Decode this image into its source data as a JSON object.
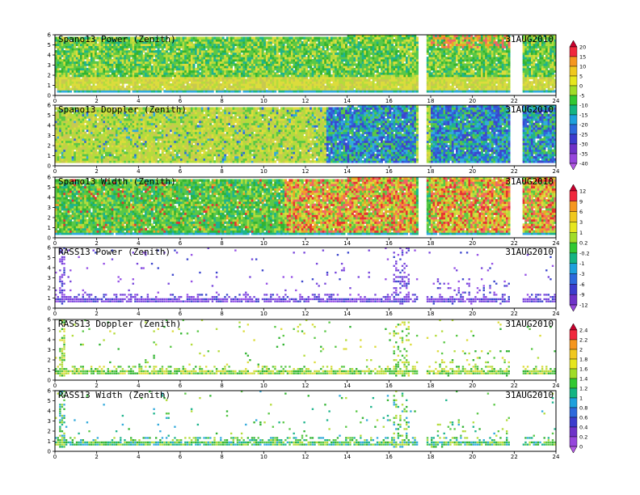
{
  "chart_data": [
    {
      "type": "heatmap",
      "title": "Spano13 Power (Zenith)",
      "date": "31AUG2010",
      "kind": "dense",
      "field": "power",
      "xlim": [
        0,
        24
      ],
      "ylim": [
        0,
        6
      ],
      "xticks": [
        0,
        2,
        4,
        6,
        8,
        10,
        12,
        14,
        16,
        18,
        20,
        22,
        24
      ],
      "yticks": [
        0,
        1,
        2,
        3,
        4,
        5,
        6
      ],
      "gaps": [
        [
          17.4,
          17.8
        ],
        [
          21.8,
          22.4
        ]
      ],
      "colorbar": "A"
    },
    {
      "type": "heatmap",
      "title": "Spano13 Doppler (Zenith)",
      "date": "31AUG2010",
      "kind": "dense",
      "field": "doppler",
      "xlim": [
        0,
        24
      ],
      "ylim": [
        0,
        6
      ],
      "xticks": [
        0,
        2,
        4,
        6,
        8,
        10,
        12,
        14,
        16,
        18,
        20,
        22,
        24
      ],
      "yticks": [
        0,
        1,
        2,
        3,
        4,
        5,
        6
      ],
      "gaps": [
        [
          17.4,
          17.8
        ],
        [
          21.8,
          22.4
        ]
      ],
      "colorbar": "A"
    },
    {
      "type": "heatmap",
      "title": "Spano13 Width (Zenith)",
      "date": "31AUG2010",
      "kind": "dense",
      "field": "width",
      "xlim": [
        0,
        24
      ],
      "ylim": [
        0,
        6
      ],
      "xticks": [
        0,
        2,
        4,
        6,
        8,
        10,
        12,
        14,
        16,
        18,
        20,
        22,
        24
      ],
      "yticks": [
        0,
        1,
        2,
        3,
        4,
        5,
        6
      ],
      "gaps": [
        [
          17.4,
          17.8
        ],
        [
          21.8,
          22.4
        ]
      ],
      "colorbar": "B"
    },
    {
      "type": "heatmap",
      "title": "RASS13 Power (Zenith)",
      "date": "31AUG2010",
      "kind": "sparse",
      "field": "rpower",
      "xlim": [
        0,
        24
      ],
      "ylim": [
        0,
        6
      ],
      "xticks": [
        0,
        2,
        4,
        6,
        8,
        10,
        12,
        14,
        16,
        18,
        20,
        22,
        24
      ],
      "yticks": [
        0,
        1,
        2,
        3,
        4,
        5,
        6
      ],
      "gaps": [
        [
          17.4,
          17.8
        ],
        [
          21.8,
          22.4
        ]
      ],
      "colorbar": "B"
    },
    {
      "type": "heatmap",
      "title": "RASS13 Doppler (Zenith)",
      "date": "31AUG2010",
      "kind": "sparse",
      "field": "rdoppler",
      "xlim": [
        0,
        24
      ],
      "ylim": [
        0,
        6
      ],
      "xticks": [
        0,
        2,
        4,
        6,
        8,
        10,
        12,
        14,
        16,
        18,
        20,
        22,
        24
      ],
      "yticks": [
        0,
        1,
        2,
        3,
        4,
        5,
        6
      ],
      "gaps": [
        [
          17.4,
          17.8
        ],
        [
          21.8,
          22.4
        ]
      ],
      "colorbar": "C"
    },
    {
      "type": "heatmap",
      "title": "RASS13 Width (Zenith)",
      "date": "31AUG2010",
      "kind": "sparse",
      "field": "rwidth",
      "xlim": [
        0,
        24
      ],
      "ylim": [
        0,
        6
      ],
      "xticks": [
        0,
        2,
        4,
        6,
        8,
        10,
        12,
        14,
        16,
        18,
        20,
        22,
        24
      ],
      "yticks": [
        0,
        1,
        2,
        3,
        4,
        5,
        6
      ],
      "gaps": [
        [
          17.4,
          17.8
        ],
        [
          21.8,
          22.4
        ]
      ],
      "colorbar": "C"
    }
  ],
  "colorbars": {
    "A": {
      "labels": [
        "20",
        "15",
        "10",
        "5",
        "0",
        "-5",
        "-10",
        "-15",
        "-20",
        "-25",
        "-30",
        "-35",
        "-40"
      ],
      "colors": [
        "#c8002d",
        "#f0283c",
        "#f5961e",
        "#f0c81e",
        "#e6e61e",
        "#a0dc28",
        "#32c832",
        "#14b482",
        "#1ea0dc",
        "#2d69dc",
        "#3c3ccd",
        "#6e32c8",
        "#9646dc",
        "#b45ae6"
      ]
    },
    "B": {
      "labels": [
        "12",
        "9",
        "6",
        "3",
        "1",
        "0.2",
        "-0.2",
        "-1",
        "-3",
        "-6",
        "-9",
        "-12"
      ],
      "colors": [
        "#c8002d",
        "#f0283c",
        "#f5961e",
        "#f0c81e",
        "#e6e61e",
        "#a0dc28",
        "#32c832",
        "#14b482",
        "#1ea0dc",
        "#2d69dc",
        "#3c3ccd",
        "#6e32c8",
        "#9646dc"
      ]
    },
    "C": {
      "labels": [
        "2.4",
        "2.2",
        "2",
        "1.8",
        "1.6",
        "1.4",
        "1.2",
        "1",
        "0.8",
        "0.6",
        "0.4",
        "0.2",
        "0"
      ],
      "colors": [
        "#c8002d",
        "#f0283c",
        "#f5961e",
        "#f0c81e",
        "#e6e61e",
        "#a0dc28",
        "#32c832",
        "#14b482",
        "#1ea0dc",
        "#2d69dc",
        "#3c3ccd",
        "#6e32c8",
        "#9646dc",
        "#b45ae6"
      ]
    }
  }
}
